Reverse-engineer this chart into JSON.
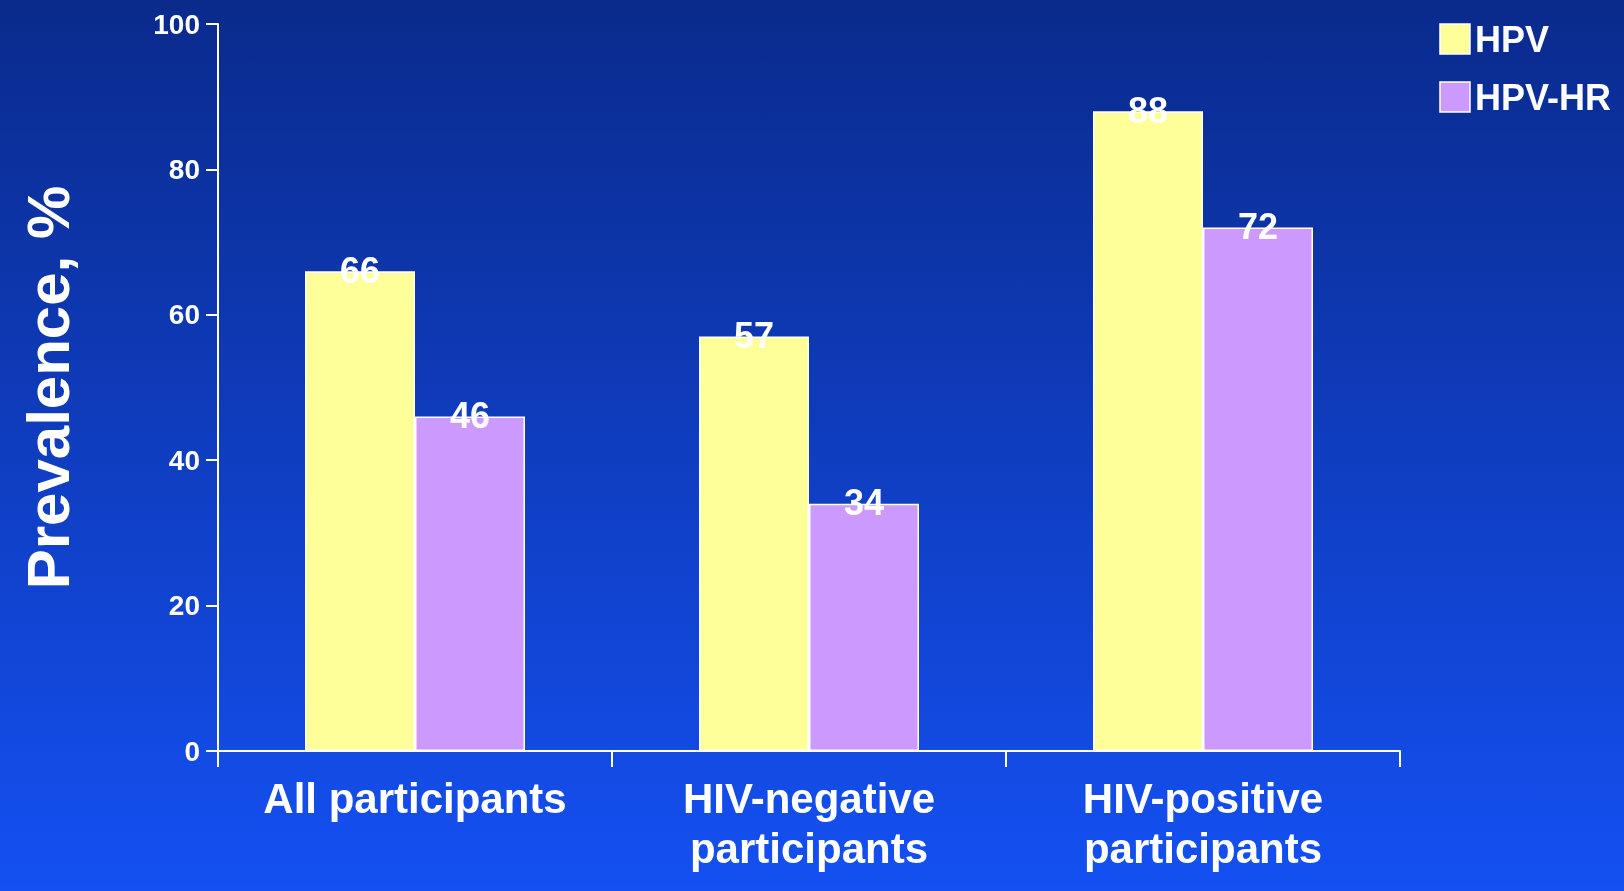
{
  "chart_data": {
    "type": "bar",
    "ylabel": "Prevalence, %",
    "categories": [
      "All participants",
      "HIV-negative\nparticipants",
      "HIV-positive\nparticipants"
    ],
    "series": [
      {
        "name": "HPV",
        "color": "#ffff99",
        "values": [
          66,
          57,
          88
        ]
      },
      {
        "name": "HPV-HR",
        "color": "#cc99ff",
        "values": [
          46,
          34,
          72
        ]
      }
    ],
    "ylim": [
      0,
      100
    ],
    "yticks": [
      0,
      20,
      40,
      60,
      80,
      100
    ],
    "data_labels": true,
    "legend": "top right",
    "grid": false
  }
}
